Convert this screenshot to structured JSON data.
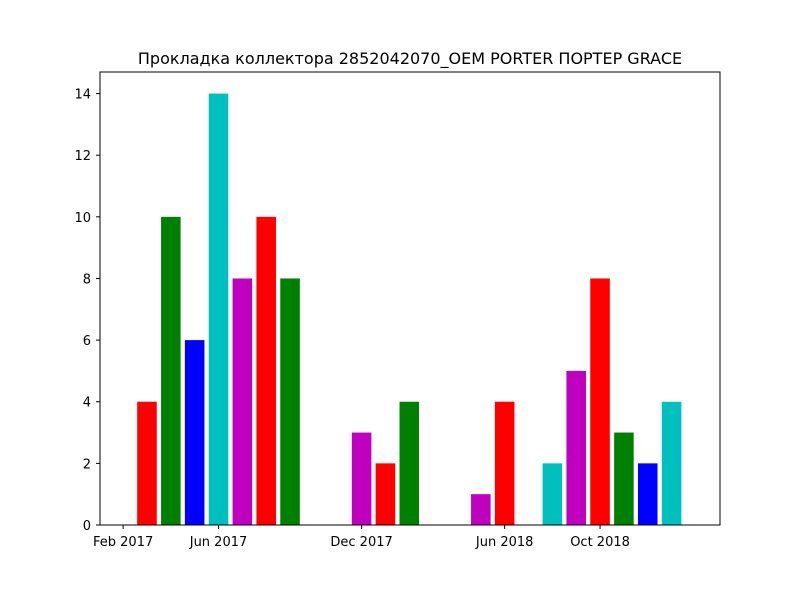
{
  "chart_data": {
    "type": "bar",
    "title": "Прокладка коллектора 2852042070_OEM  PORTER ПОРТЕР GRACE",
    "xlabel": "",
    "ylabel": "",
    "x_axis": "date",
    "x": [
      "2017-03",
      "2017-04",
      "2017-05",
      "2017-06",
      "2017-07",
      "2017-08",
      "2017-09",
      "2017-12",
      "2018-01",
      "2018-02",
      "2018-05",
      "2018-06",
      "2018-08",
      "2018-09",
      "2018-10",
      "2018-11",
      "2018-12",
      "2019-01"
    ],
    "values": [
      4,
      10,
      6,
      14,
      8,
      10,
      8,
      3,
      2,
      4,
      1,
      4,
      2,
      5,
      8,
      3,
      2,
      4
    ],
    "colors": [
      "#ff0000",
      "#008000",
      "#0000ff",
      "#00bfbf",
      "#bf00bf",
      "#ff0000",
      "#008000",
      "#bf00bf",
      "#ff0000",
      "#008000",
      "#bf00bf",
      "#ff0000",
      "#00bfbf",
      "#bf00bf",
      "#ff0000",
      "#008000",
      "#0000ff",
      "#00bfbf"
    ],
    "xticks": [
      {
        "date": "2017-02",
        "label": "Feb 2017"
      },
      {
        "date": "2017-06",
        "label": "Jun 2017"
      },
      {
        "date": "2017-12",
        "label": "Dec 2017"
      },
      {
        "date": "2018-06",
        "label": "Jun 2018"
      },
      {
        "date": "2018-10",
        "label": "Oct 2018"
      }
    ],
    "xlim": [
      "2017-01",
      "2019-03"
    ],
    "ylim": [
      0,
      14.7
    ],
    "yticks": [
      0,
      2,
      4,
      6,
      8,
      10,
      12,
      14
    ],
    "grid": false,
    "legend": "none"
  }
}
